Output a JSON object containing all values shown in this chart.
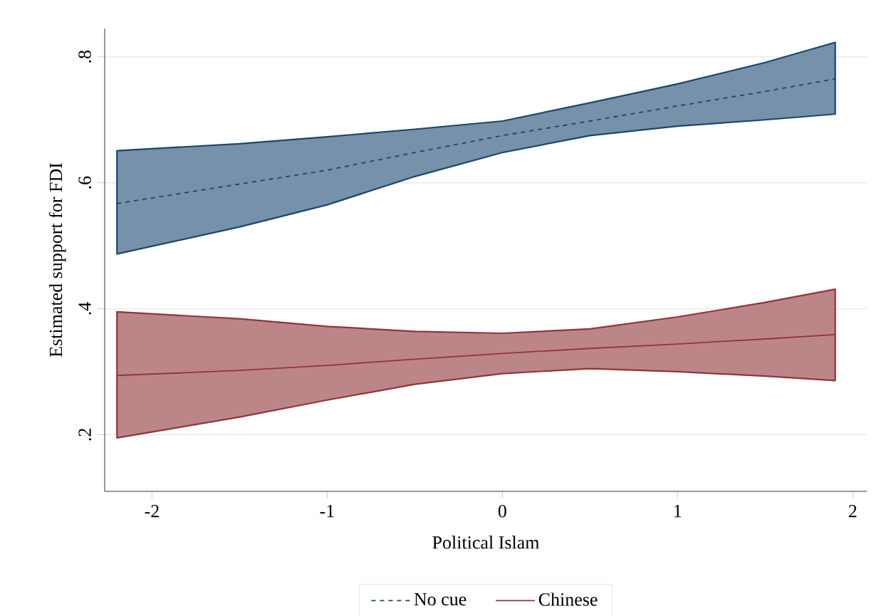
{
  "chart_data": {
    "type": "line",
    "xlabel": "Political Islam",
    "ylabel": "Estimated support for FDI",
    "xlim": [
      -2.27,
      2.08
    ],
    "ylim": [
      0.11,
      0.845
    ],
    "xticks": [
      {
        "value": -2,
        "label": "-2"
      },
      {
        "value": -1,
        "label": "-1"
      },
      0,
      1,
      2
    ],
    "yticks": [
      {
        "value": 0.2,
        "label": ".2"
      },
      {
        "value": 0.4,
        "label": ".4"
      },
      {
        "value": 0.6,
        "label": ".6"
      },
      {
        "value": 0.8,
        "label": ".8"
      }
    ],
    "grid": "y",
    "legend": "bottom",
    "marker": "none",
    "series": [
      {
        "name": "No cue",
        "color": "#1a476f",
        "line_style": "dashed",
        "x": [
          -2.2,
          -1.5,
          -1,
          -0.5,
          0,
          0.5,
          1,
          1.5,
          1.9
        ],
        "values": [
          0.567,
          0.598,
          0.62,
          0.648,
          0.675,
          0.698,
          0.722,
          0.745,
          0.765
        ],
        "lower": [
          0.487,
          0.53,
          0.565,
          0.61,
          0.648,
          0.675,
          0.69,
          0.7,
          0.709
        ],
        "upper": [
          0.651,
          0.662,
          0.673,
          0.685,
          0.698,
          0.727,
          0.757,
          0.791,
          0.823
        ]
      },
      {
        "name": "Chinese",
        "color": "#90353b",
        "line_style": "solid",
        "x": [
          -2.2,
          -1.5,
          -1,
          -0.5,
          0,
          0.5,
          1,
          1.5,
          1.9
        ],
        "values": [
          0.294,
          0.302,
          0.31,
          0.32,
          0.329,
          0.337,
          0.344,
          0.352,
          0.359
        ],
        "lower": [
          0.195,
          0.228,
          0.255,
          0.28,
          0.297,
          0.305,
          0.3,
          0.293,
          0.286
        ],
        "upper": [
          0.395,
          0.384,
          0.372,
          0.364,
          0.361,
          0.368,
          0.387,
          0.41,
          0.431
        ]
      }
    ]
  }
}
